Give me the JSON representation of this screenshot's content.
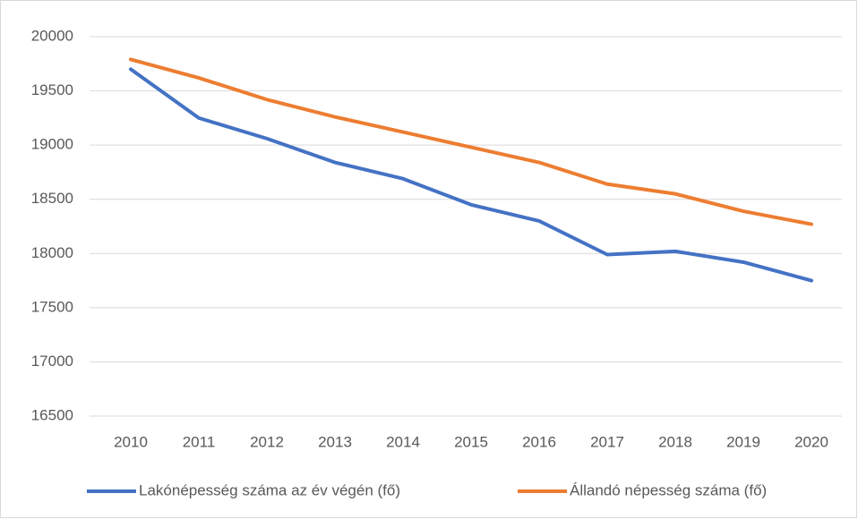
{
  "chart_data": {
    "type": "line",
    "categories": [
      "2010",
      "2011",
      "2012",
      "2013",
      "2014",
      "2015",
      "2016",
      "2017",
      "2018",
      "2019",
      "2020"
    ],
    "series": [
      {
        "name": "Lakónépesség száma az év végén (fő)",
        "color": "#4472c4",
        "values": [
          19700,
          19250,
          19060,
          18840,
          18690,
          18450,
          18300,
          17990,
          18020,
          17920,
          17750
        ]
      },
      {
        "name": "Állandó népesség száma (fő)",
        "color": "#ed7d31",
        "values": [
          19790,
          19620,
          19420,
          19260,
          19120,
          18980,
          18840,
          18640,
          18550,
          18390,
          18270
        ]
      }
    ],
    "ylim": [
      16500,
      20000
    ],
    "yticks": [
      16500,
      17000,
      17500,
      18000,
      18500,
      19000,
      19500,
      20000
    ],
    "grid": true,
    "legend": "bottom"
  }
}
